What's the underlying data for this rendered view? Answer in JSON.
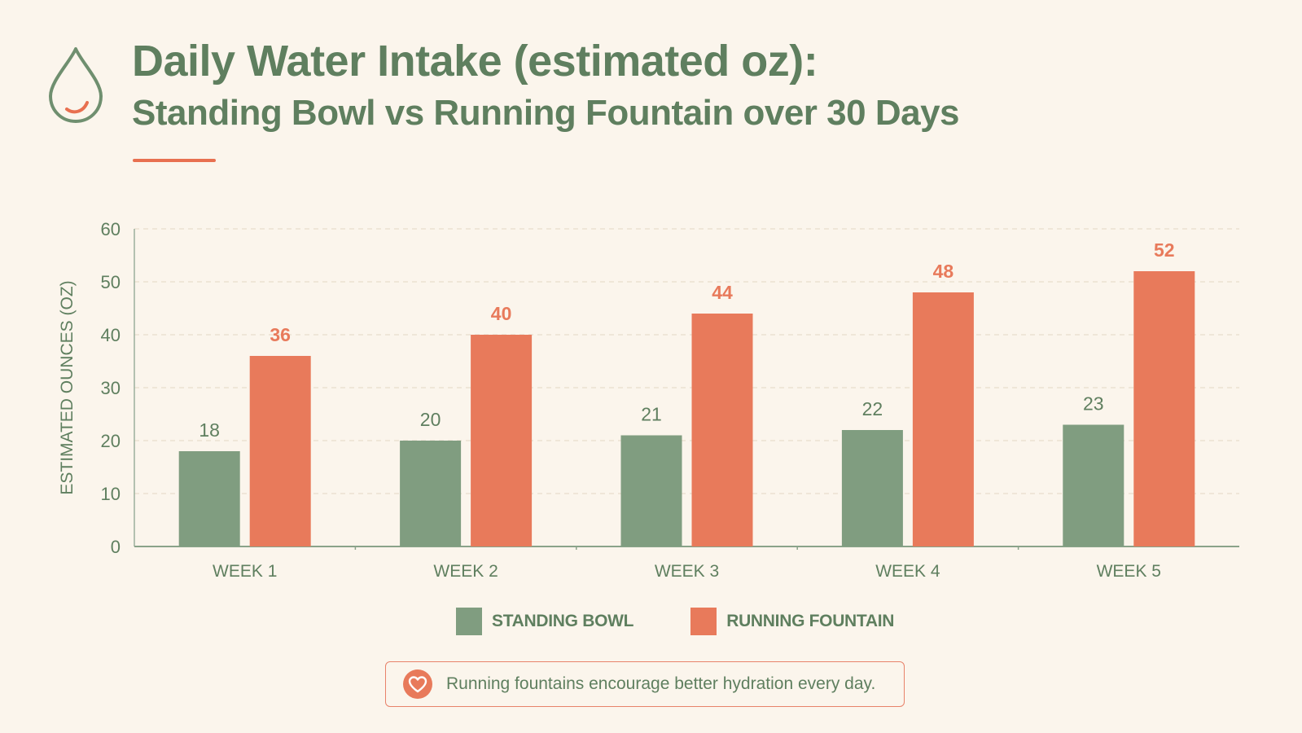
{
  "header": {
    "title": "Daily Water Intake (estimated oz):",
    "subtitle": "Standing Bowl vs Running Fountain over 30 Days",
    "icon": "water-drop-icon"
  },
  "colors": {
    "background": "#fbf5ec",
    "text": "#5f7f5f",
    "standing_bowl": "#809d80",
    "running_fountain": "#e87a5b"
  },
  "chart_data": {
    "type": "bar",
    "title": "Daily Water Intake (estimated oz):",
    "subtitle": "Standing Bowl vs Running Fountain over 30 Days",
    "xlabel": "",
    "ylabel": "ESTIMATED OUNCES (OZ)",
    "categories": [
      "WEEK 1",
      "WEEK 2",
      "WEEK 3",
      "WEEK 4",
      "WEEK 5"
    ],
    "series": [
      {
        "name": "STANDING BOWL",
        "values": [
          18,
          20,
          21,
          22,
          23
        ]
      },
      {
        "name": "RUNNING FOUNTAIN",
        "values": [
          36,
          40,
          44,
          48,
          52
        ]
      }
    ],
    "ylim": [
      0,
      60
    ],
    "yticks": [
      0,
      10,
      20,
      30,
      40,
      50,
      60
    ],
    "grid": true,
    "legend": "bottom"
  },
  "legend": {
    "items": [
      {
        "label": "STANDING BOWL"
      },
      {
        "label": "RUNNING FOUNTAIN"
      }
    ]
  },
  "callout": {
    "icon": "heart-icon",
    "text": "Running fountains encourage better hydration every day."
  }
}
